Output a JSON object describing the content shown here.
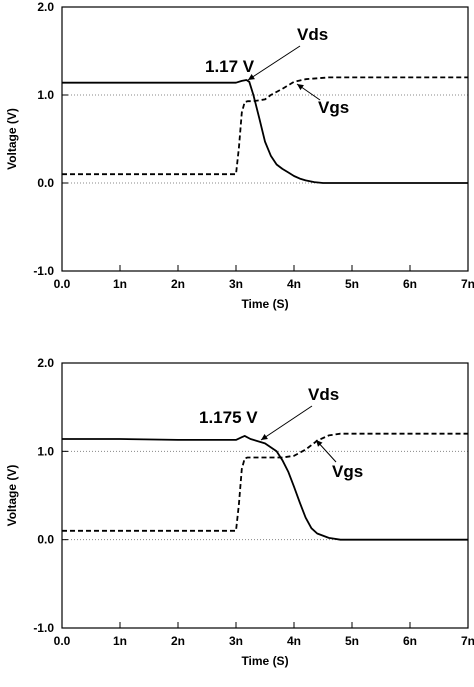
{
  "chart_data": [
    {
      "type": "line",
      "title": "",
      "xlabel": "Time (S)",
      "ylabel": "Voltage (V)",
      "xlim": [
        0,
        7
      ],
      "ylim": [
        -1,
        2
      ],
      "x_ticks": [
        "0.0",
        "1n",
        "2n",
        "3n",
        "4n",
        "5n",
        "6n",
        "7n"
      ],
      "y_ticks": [
        "2.0",
        "1.0",
        "0.0",
        "-1.0"
      ],
      "reference_lines": [
        1.0,
        0.0
      ],
      "grid": false,
      "series": [
        {
          "name": "Vds",
          "style": "solid",
          "color": "#000000",
          "x": [
            0,
            1,
            2,
            3.0,
            3.1,
            3.18,
            3.23,
            3.3,
            3.4,
            3.5,
            3.6,
            3.7,
            3.8,
            3.9,
            4.0,
            4.1,
            4.2,
            4.35,
            4.5,
            5,
            6,
            7
          ],
          "y": [
            1.14,
            1.14,
            1.14,
            1.14,
            1.16,
            1.17,
            1.15,
            1.0,
            0.74,
            0.47,
            0.31,
            0.21,
            0.16,
            0.12,
            0.08,
            0.05,
            0.03,
            0.01,
            0.0,
            0.0,
            0.0,
            0.0
          ]
        },
        {
          "name": "Vgs",
          "style": "dashed",
          "color": "#000000",
          "x": [
            0,
            1,
            2,
            3.0,
            3.05,
            3.1,
            3.15,
            3.2,
            3.3,
            3.5,
            3.6,
            3.8,
            4.0,
            4.2,
            4.4,
            4.6,
            5,
            6,
            7
          ],
          "y": [
            0.1,
            0.1,
            0.1,
            0.1,
            0.4,
            0.8,
            0.92,
            0.93,
            0.93,
            0.95,
            1.0,
            1.07,
            1.15,
            1.18,
            1.19,
            1.2,
            1.2,
            1.2,
            1.2
          ]
        }
      ],
      "annotations": [
        {
          "text": "1.17 V"
        },
        {
          "text": "Vds"
        },
        {
          "text": "Vgs"
        }
      ]
    },
    {
      "type": "line",
      "title": "",
      "xlabel": "Time (S)",
      "ylabel": "Voltage (V)",
      "xlim": [
        0,
        7
      ],
      "ylim": [
        -1,
        2
      ],
      "x_ticks": [
        "0.0",
        "1n",
        "2n",
        "3n",
        "4n",
        "5n",
        "6n",
        "7n"
      ],
      "y_ticks": [
        "2.0",
        "1.0",
        "0.0",
        "-1.0"
      ],
      "reference_lines": [
        1.0,
        0.0
      ],
      "grid": false,
      "series": [
        {
          "name": "Vds",
          "style": "solid",
          "color": "#000000",
          "x": [
            0,
            1,
            2,
            3.0,
            3.1,
            3.15,
            3.25,
            3.5,
            3.7,
            3.8,
            3.9,
            4.0,
            4.1,
            4.2,
            4.3,
            4.4,
            4.6,
            4.8,
            5,
            6,
            7
          ],
          "y": [
            1.14,
            1.14,
            1.13,
            1.13,
            1.16,
            1.175,
            1.14,
            1.09,
            1.0,
            0.9,
            0.77,
            0.6,
            0.42,
            0.25,
            0.13,
            0.07,
            0.02,
            0.0,
            0.0,
            0.0,
            0.0
          ]
        },
        {
          "name": "Vgs",
          "style": "dashed",
          "color": "#000000",
          "x": [
            0,
            1,
            2,
            3.0,
            3.05,
            3.1,
            3.15,
            3.2,
            3.5,
            3.8,
            4.0,
            4.2,
            4.4,
            4.6,
            4.8,
            5,
            6,
            7
          ],
          "y": [
            0.1,
            0.1,
            0.1,
            0.1,
            0.4,
            0.8,
            0.92,
            0.93,
            0.93,
            0.93,
            0.95,
            1.02,
            1.12,
            1.18,
            1.2,
            1.2,
            1.2,
            1.2
          ]
        }
      ],
      "annotations": [
        {
          "text": "1.175 V"
        },
        {
          "text": "Vds"
        },
        {
          "text": "Vgs"
        }
      ]
    }
  ]
}
